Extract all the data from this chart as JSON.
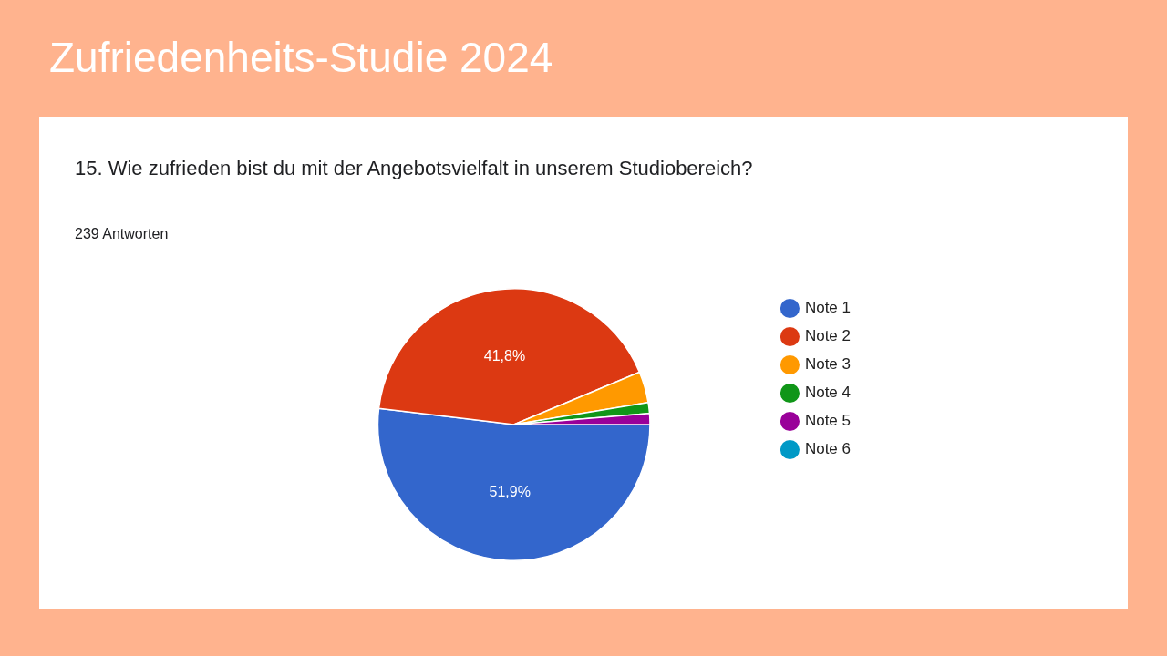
{
  "chart_data": {
    "type": "pie",
    "title": "Zufriedenheits-Studie 2024",
    "subtitle": "15. Wie zufrieden bist du mit der Angebotsvielfalt in unserem Studiobereich?",
    "annotations": [
      "239 Antworten"
    ],
    "categories": [
      "Note 1",
      "Note 2",
      "Note 3",
      "Note 4",
      "Note 5",
      "Note 6"
    ],
    "values": [
      51.9,
      41.8,
      3.7,
      1.3,
      1.3,
      0
    ],
    "colors": [
      "#3366cc",
      "#dc3912",
      "#ff9900",
      "#109618",
      "#990099",
      "#0099c6"
    ],
    "value_labels": [
      "51,9%",
      "41,8%",
      null,
      null,
      null,
      null
    ],
    "legend": "right"
  }
}
